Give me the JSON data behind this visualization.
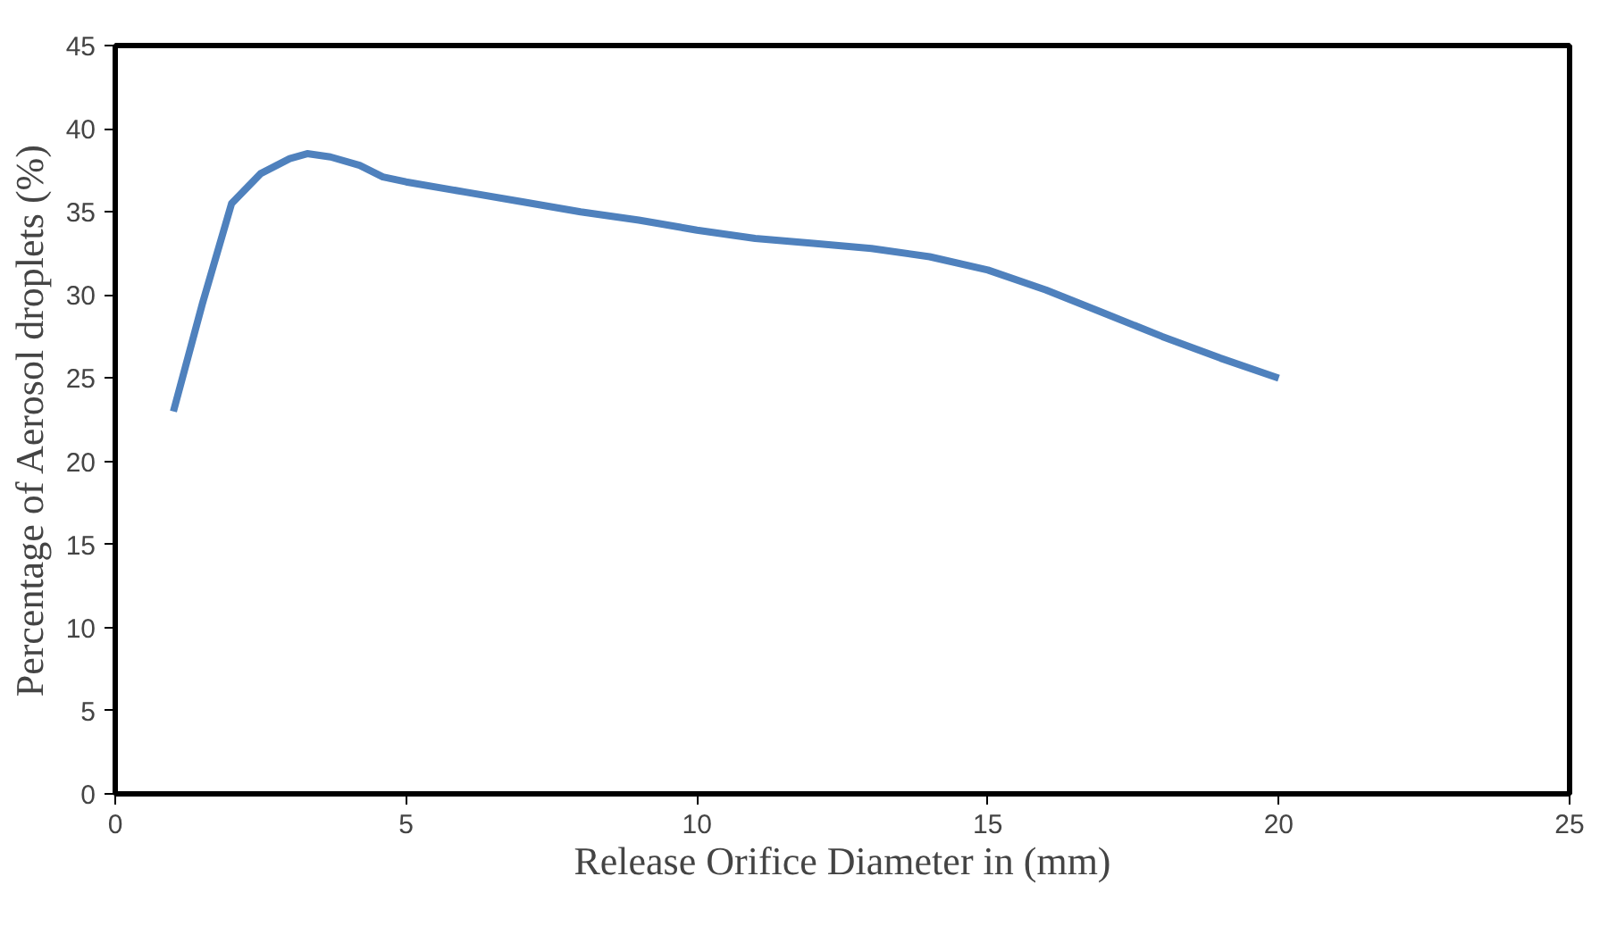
{
  "chart_data": {
    "type": "line",
    "xlabel": "Release Orifice Diameter in (mm)",
    "ylabel": "Percentage of Aerosol droplets (%)",
    "x": [
      1,
      1.5,
      2,
      2.5,
      3,
      3.3,
      3.7,
      4.2,
      4.6,
      5,
      6,
      7,
      8,
      9,
      10,
      11,
      12,
      13,
      14,
      15,
      16,
      17,
      18,
      19,
      20
    ],
    "series": [
      {
        "color": "#4f81bd",
        "values": [
          23,
          29.5,
          35.5,
          37.3,
          38.2,
          38.5,
          38.3,
          37.8,
          37.1,
          36.8,
          36.2,
          35.6,
          35,
          34.5,
          33.9,
          33.4,
          33.1,
          32.8,
          32.3,
          31.5,
          30.3,
          28.9,
          27.5,
          26.2,
          25
        ]
      }
    ],
    "xlim": [
      0,
      25
    ],
    "xticks": [
      0,
      5,
      10,
      15,
      20,
      25
    ],
    "ylim": [
      0,
      45
    ],
    "yticks": [
      0,
      5,
      10,
      15,
      20,
      25,
      30,
      35,
      40,
      45
    ],
    "line_style": "solid"
  }
}
